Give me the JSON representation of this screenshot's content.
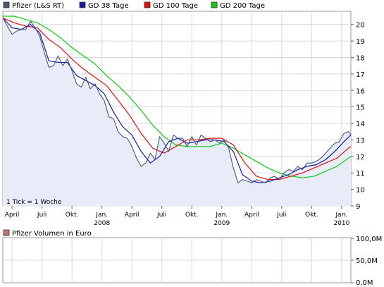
{
  "chart_data": [
    {
      "type": "line",
      "legend_placement": "top-left",
      "grid": true,
      "ylim": [
        9,
        20.8
      ],
      "y_ticks": [
        "9",
        "10",
        "11",
        "12",
        "13",
        "14",
        "15",
        "16",
        "17",
        "18",
        "19",
        "20"
      ],
      "x_ticks": [
        {
          "week": 4,
          "label": "April",
          "year": ""
        },
        {
          "week": 17,
          "label": "Juli",
          "year": ""
        },
        {
          "week": 30,
          "label": "Okt.",
          "year": ""
        },
        {
          "week": 43,
          "label": "Jan.",
          "year": "2008"
        },
        {
          "week": 56,
          "label": "April",
          "year": ""
        },
        {
          "week": 69,
          "label": "Juli",
          "year": ""
        },
        {
          "week": 82,
          "label": "Okt.",
          "year": ""
        },
        {
          "week": 95,
          "label": "Jan.",
          "year": "2009"
        },
        {
          "week": 108,
          "label": "April",
          "year": ""
        },
        {
          "week": 121,
          "label": "Juli",
          "year": ""
        },
        {
          "week": 134,
          "label": "Okt.",
          "year": ""
        },
        {
          "week": 147,
          "label": "Jan.",
          "year": "2010"
        }
      ],
      "annotation": "1 Tick = 1 Woche",
      "series": [
        {
          "name": "Pfizer (L&S RT)",
          "color": "#4a5870",
          "fill": "#e8ecf8",
          "x": [
            0,
            2,
            4,
            6,
            8,
            10,
            12,
            14,
            16,
            18,
            20,
            22,
            24,
            26,
            28,
            30,
            32,
            34,
            36,
            38,
            40,
            42,
            44,
            46,
            48,
            50,
            52,
            54,
            56,
            58,
            60,
            62,
            64,
            66,
            68,
            70,
            72,
            74,
            76,
            78,
            80,
            82,
            84,
            86,
            88,
            90,
            92,
            94,
            96,
            98,
            100,
            102,
            104,
            106,
            108,
            110,
            112,
            114,
            116,
            118,
            120,
            122,
            124,
            126,
            128,
            130,
            132,
            134,
            136,
            138,
            140,
            142,
            144,
            146,
            148,
            150,
            151
          ],
          "values": [
            20.4,
            19.9,
            19.4,
            19.6,
            19.7,
            19.7,
            20.2,
            19.8,
            19.3,
            18.3,
            17.4,
            17.5,
            18.1,
            17.5,
            17.9,
            17.2,
            16.4,
            16.2,
            16.8,
            16.1,
            16.4,
            15.8,
            15.4,
            14.4,
            14.3,
            13.5,
            13.2,
            13.1,
            12.6,
            11.9,
            11.4,
            11.6,
            12.2,
            11.8,
            13.2,
            12.8,
            12.3,
            13.3,
            13.1,
            13.1,
            12.6,
            13.2,
            12.7,
            13.3,
            13.1,
            12.9,
            13.0,
            12.8,
            13.0,
            12.5,
            11.3,
            10.4,
            10.6,
            10.5,
            10.4,
            10.6,
            10.5,
            10.4,
            10.7,
            10.8,
            10.6,
            11.0,
            11.2,
            11.1,
            11.4,
            11.2,
            11.6,
            11.6,
            11.7,
            11.9,
            12.2,
            12.5,
            12.8,
            12.9,
            13.4,
            13.5,
            13.3
          ]
        },
        {
          "name": "GD 38 Tage",
          "color": "#1a1aa8",
          "x": [
            0,
            4,
            8,
            12,
            16,
            20,
            24,
            28,
            32,
            36,
            40,
            44,
            48,
            52,
            56,
            60,
            64,
            68,
            72,
            76,
            80,
            84,
            88,
            92,
            96,
            100,
            104,
            108,
            112,
            116,
            120,
            124,
            128,
            132,
            136,
            140,
            144,
            148,
            151
          ],
          "values": [
            20.4,
            19.8,
            19.7,
            20.0,
            19.5,
            17.8,
            17.7,
            17.7,
            16.9,
            16.6,
            16.3,
            15.8,
            14.7,
            13.8,
            13.3,
            12.3,
            11.6,
            12.0,
            12.9,
            13.1,
            12.8,
            12.9,
            13.0,
            13.0,
            12.9,
            12.3,
            10.9,
            10.5,
            10.4,
            10.5,
            10.7,
            10.9,
            11.2,
            11.4,
            11.5,
            11.8,
            12.3,
            12.9,
            13.3
          ]
        },
        {
          "name": "GD 100 Tage",
          "color": "#e01010",
          "x": [
            0,
            5,
            10,
            15,
            20,
            25,
            30,
            35,
            40,
            45,
            50,
            55,
            60,
            65,
            70,
            75,
            80,
            85,
            90,
            95,
            100,
            105,
            110,
            115,
            120,
            125,
            130,
            135,
            140,
            145,
            150,
            151
          ],
          "values": [
            20.4,
            20.1,
            19.9,
            19.8,
            19.1,
            18.6,
            17.9,
            17.3,
            16.8,
            16.3,
            15.4,
            14.5,
            13.4,
            12.5,
            12.2,
            12.6,
            13.0,
            13.0,
            13.1,
            13.1,
            12.7,
            11.6,
            10.8,
            10.6,
            10.6,
            10.8,
            11.0,
            11.3,
            11.6,
            11.9,
            12.5,
            12.6
          ]
        },
        {
          "name": "GD 200 Tage",
          "color": "#10cc10",
          "x": [
            0,
            5,
            10,
            15,
            20,
            25,
            30,
            35,
            40,
            45,
            50,
            55,
            60,
            65,
            70,
            75,
            80,
            85,
            90,
            95,
            100,
            105,
            110,
            115,
            120,
            125,
            130,
            135,
            140,
            145,
            150,
            151
          ],
          "values": [
            20.5,
            20.5,
            20.3,
            20.1,
            19.7,
            19.2,
            18.6,
            18.1,
            17.6,
            16.9,
            16.3,
            15.6,
            14.8,
            13.9,
            13.2,
            12.7,
            12.6,
            12.6,
            12.6,
            12.8,
            12.5,
            12.1,
            11.7,
            11.3,
            11.0,
            10.8,
            10.7,
            10.8,
            11.1,
            11.4,
            11.9,
            12.0
          ]
        }
      ]
    },
    {
      "type": "bar",
      "legend_placement": "top-left",
      "grid": true,
      "y_ticks": [
        "100,0M",
        "50,0M",
        "0,0M"
      ],
      "series": [
        {
          "name": "Pfizer Volumen in Euro",
          "color": "#c87070",
          "values": []
        }
      ]
    }
  ]
}
